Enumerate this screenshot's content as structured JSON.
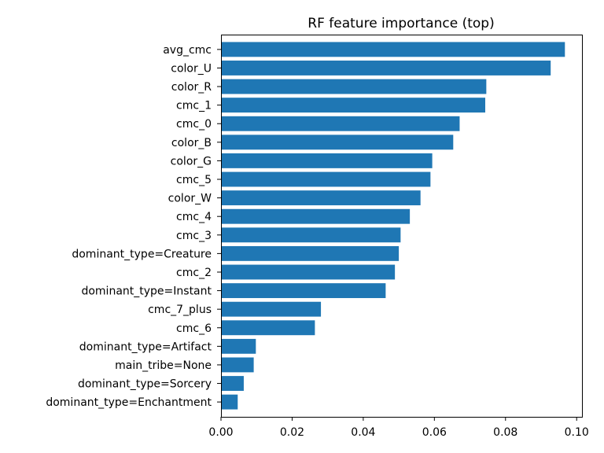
{
  "chart_data": {
    "type": "bar",
    "orientation": "horizontal",
    "title": "RF feature importance (top)",
    "xlabel": "",
    "ylabel": "",
    "categories": [
      "avg_cmc",
      "color_U",
      "color_R",
      "cmc_1",
      "cmc_0",
      "color_B",
      "color_G",
      "cmc_5",
      "color_W",
      "cmc_4",
      "cmc_3",
      "dominant_type=Creature",
      "cmc_2",
      "dominant_type=Instant",
      "cmc_7_plus",
      "cmc_6",
      "dominant_type=Artifact",
      "main_tribe=None",
      "dominant_type=Sorcery",
      "dominant_type=Enchantment"
    ],
    "values": [
      0.0967,
      0.0927,
      0.0746,
      0.0743,
      0.0671,
      0.0653,
      0.0594,
      0.0589,
      0.0561,
      0.0531,
      0.0505,
      0.05,
      0.0489,
      0.0463,
      0.0281,
      0.0264,
      0.0098,
      0.0092,
      0.0064,
      0.0047
    ],
    "xlim": [
      0,
      0.1015
    ],
    "xticks": [
      0.0,
      0.02,
      0.04,
      0.06,
      0.08,
      0.1
    ],
    "xtick_labels": [
      "0.00",
      "0.02",
      "0.04",
      "0.06",
      "0.08",
      "0.10"
    ],
    "grid": false,
    "legend": false,
    "bar_color": "#1f77b4"
  }
}
